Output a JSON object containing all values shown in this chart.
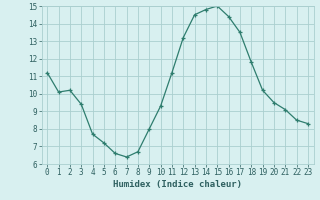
{
  "x": [
    0,
    1,
    2,
    3,
    4,
    5,
    6,
    7,
    8,
    9,
    10,
    11,
    12,
    13,
    14,
    15,
    16,
    17,
    18,
    19,
    20,
    21,
    22,
    23
  ],
  "y": [
    11.2,
    10.1,
    10.2,
    9.4,
    7.7,
    7.2,
    6.6,
    6.4,
    6.7,
    8.0,
    9.3,
    11.2,
    13.2,
    14.5,
    14.8,
    15.0,
    14.4,
    13.5,
    11.8,
    10.2,
    9.5,
    9.1,
    8.5,
    8.3
  ],
  "line_color": "#2e7d6e",
  "marker": "+",
  "bg_color": "#d8f0f0",
  "grid_color": "#aacfcf",
  "xlabel": "Humidex (Indice chaleur)",
  "xlim": [
    -0.5,
    23.5
  ],
  "ylim": [
    6,
    15
  ],
  "yticks": [
    6,
    7,
    8,
    9,
    10,
    11,
    12,
    13,
    14,
    15
  ],
  "xticks": [
    0,
    1,
    2,
    3,
    4,
    5,
    6,
    7,
    8,
    9,
    10,
    11,
    12,
    13,
    14,
    15,
    16,
    17,
    18,
    19,
    20,
    21,
    22,
    23
  ],
  "font_color": "#2e6060",
  "xlabel_fontsize": 6.5,
  "tick_fontsize": 5.5
}
